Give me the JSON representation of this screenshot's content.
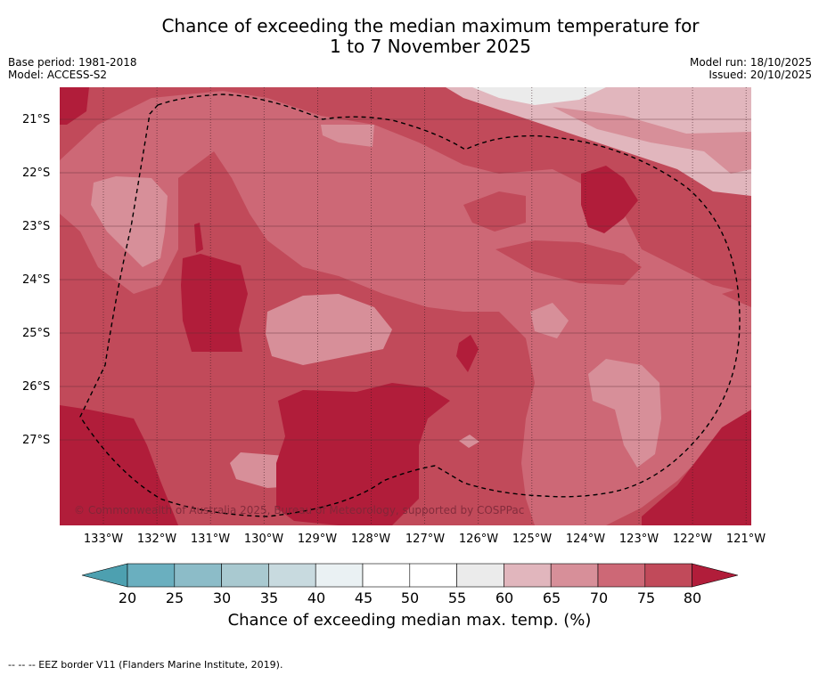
{
  "title_line1": "Chance of exceeding the median maximum temperature for",
  "title_line2": "1 to 7 November 2025",
  "base_period": "Base period: 1981-2018",
  "model": "Model: ACCESS-S2",
  "model_run": "Model run: 18/10/2025",
  "issued": "Issued: 20/10/2025",
  "copyright": "© Commonwealth of Australia 2025, Bureau of Meteorology, supported by COSPPac",
  "footnote": "--  --  -- EEZ border V11 (Flanders Marine Institute, 2019).",
  "lat_labels": [
    "21°S",
    "22°S",
    "23°S",
    "24°S",
    "25°S",
    "26°S",
    "27°S"
  ],
  "lon_labels": [
    "133°W",
    "132°W",
    "131°W",
    "130°W",
    "129°W",
    "128°W",
    "127°W",
    "126°W",
    "125°W",
    "124°W",
    "123°W",
    "122°W",
    "121°W"
  ],
  "colorbar": {
    "title": "Chance of exceeding median max. temp. (%)",
    "ticks": [
      "20",
      "25",
      "30",
      "35",
      "40",
      "45",
      "50",
      "55",
      "60",
      "65",
      "70",
      "75",
      "80"
    ],
    "colors": {
      "below20": "#4da0b0",
      "20-25": "#6aafbf",
      "25-30": "#8cbcc8",
      "30-35": "#a9c9d0",
      "35-40": "#c8dadf",
      "40-45": "#eaf1f3",
      "45-50": "#ffffff",
      "50-55": "#ffffff",
      "55-60": "#ebebeb",
      "60-65": "#e1b6bd",
      "65-70": "#d78f99",
      "70-75": "#cd6876",
      "75-80": "#c14a5a",
      "above80": "#b11d3a"
    }
  }
}
